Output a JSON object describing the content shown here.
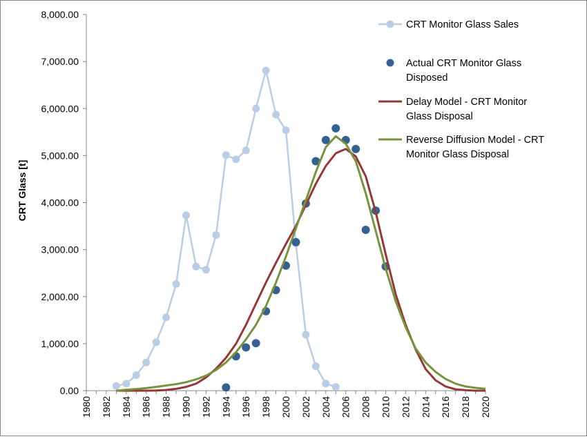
{
  "chart_data": {
    "type": "line",
    "title": "",
    "xlabel": "",
    "ylabel": "CRT Glass [t]",
    "xlim": [
      1980,
      2020
    ],
    "ylim": [
      0,
      8000
    ],
    "grid": false,
    "legend_position": "top-right",
    "x_ticks": [
      "1980",
      "1982",
      "1984",
      "1986",
      "1988",
      "1990",
      "1992",
      "1994",
      "1996",
      "1998",
      "2000",
      "2002",
      "2004",
      "2006",
      "2008",
      "2010",
      "2012",
      "2014",
      "2016",
      "2018",
      "2020"
    ],
    "y_ticks": [
      "0.00",
      "1,000.00",
      "2,000.00",
      "3,000.00",
      "4,000.00",
      "5,000.00",
      "6,000.00",
      "7,000.00",
      "8,000.00"
    ],
    "series": [
      {
        "name": "CRT Monitor Glass Sales",
        "style": "line-markers",
        "color": "#b9cde5",
        "x": [
          1983,
          1984,
          1985,
          1986,
          1987,
          1988,
          1989,
          1990,
          1991,
          1992,
          1993,
          1994,
          1995,
          1996,
          1997,
          1998,
          1999,
          2000,
          2001,
          2002,
          2003,
          2004,
          2005
        ],
        "values": [
          100,
          150,
          330,
          600,
          1030,
          1560,
          2270,
          3730,
          2640,
          2570,
          3310,
          5010,
          4920,
          5110,
          6000,
          6810,
          5870,
          5540,
          3130,
          1190,
          520,
          150,
          80
        ]
      },
      {
        "name": "Actual CRT Monitor Glass Disposed",
        "style": "markers",
        "color": "#376092",
        "x": [
          1994,
          1995,
          1996,
          1997,
          1998,
          1999,
          2000,
          2001,
          2002,
          2003,
          2004,
          2005,
          2006,
          2007,
          2008,
          2009,
          2010
        ],
        "values": [
          70,
          730,
          920,
          1010,
          1690,
          2140,
          2660,
          3160,
          3980,
          4880,
          5330,
          5580,
          5330,
          5140,
          3420,
          3830,
          2640
        ]
      },
      {
        "name": "Delay Model - CRT Monitor Glass Disposal",
        "style": "line",
        "color": "#953735",
        "x": [
          1983,
          1984,
          1985,
          1986,
          1987,
          1988,
          1989,
          1990,
          1991,
          1992,
          1993,
          1994,
          1995,
          1996,
          1997,
          1998,
          1999,
          2000,
          2001,
          2002,
          2003,
          2004,
          2005,
          2006,
          2007,
          2008,
          2009,
          2010,
          2011,
          2012,
          2013,
          2014,
          2015,
          2016,
          2017,
          2018,
          2019,
          2020
        ],
        "values": [
          0,
          0,
          0,
          0,
          5,
          15,
          40,
          80,
          150,
          280,
          470,
          700,
          1000,
          1400,
          1850,
          2300,
          2720,
          3120,
          3500,
          3950,
          4400,
          4780,
          5050,
          5140,
          4980,
          4560,
          3800,
          2900,
          2050,
          1400,
          880,
          460,
          220,
          90,
          30,
          10,
          0,
          0
        ]
      },
      {
        "name": "Reverse Diffusion Model - CRT Monitor Glass Disposal",
        "style": "line",
        "color": "#77933c",
        "x": [
          1983,
          1984,
          1985,
          1986,
          1987,
          1988,
          1989,
          1990,
          1991,
          1992,
          1993,
          1994,
          1995,
          1996,
          1997,
          1998,
          1999,
          2000,
          2001,
          2002,
          2003,
          2004,
          2005,
          2006,
          2007,
          2008,
          2009,
          2010,
          2011,
          2012,
          2013,
          2014,
          2015,
          2016,
          2017,
          2018,
          2019,
          2020
        ],
        "values": [
          0,
          20,
          35,
          55,
          80,
          110,
          140,
          180,
          240,
          320,
          440,
          600,
          820,
          1090,
          1400,
          1800,
          2300,
          2850,
          3450,
          4050,
          4650,
          5180,
          5410,
          5250,
          4880,
          4200,
          3400,
          2600,
          1900,
          1350,
          900,
          600,
          400,
          250,
          150,
          90,
          60,
          40
        ]
      }
    ]
  }
}
